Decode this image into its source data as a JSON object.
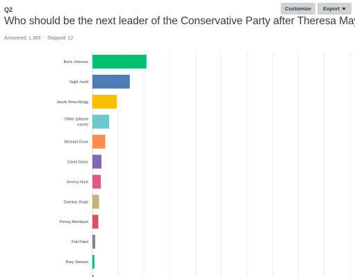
{
  "header": {
    "question_number": "Q2",
    "title": "Who should be the next leader of the Conservative Party after Theresa May?",
    "answered": "Answered: 1,363",
    "skipped": "Skipped: 12"
  },
  "toolbar": {
    "customize_label": "Customize",
    "export_label": "Export"
  },
  "colors": {
    "grid": "#e3e6e8",
    "axis": "#d0d2d3"
  },
  "chart_data": {
    "type": "bar",
    "orientation": "horizontal",
    "xlim": [
      0,
      100
    ],
    "grid": true,
    "categories": [
      "Boris Johnson",
      "Sajid Javid",
      "Jacob Rees-Mogg",
      "Other (please name)",
      "Michael Gove",
      "David Davis",
      "Jeremy Hunt",
      "Dominic Raab",
      "Penny Mordaunt",
      "Priti Patel",
      "Rory Stewart"
    ],
    "category_lines": [
      [
        "Boris Johnson"
      ],
      [
        "Sajid Javid"
      ],
      [
        "Jacob Rees-Mogg"
      ],
      [
        "Other (please",
        "name)"
      ],
      [
        "Michael Gove"
      ],
      [
        "David Davis"
      ],
      [
        "Jeremy Hunt"
      ],
      [
        "Dominic Raab"
      ],
      [
        "Penny Mordaunt"
      ],
      [
        "Priti Patel"
      ],
      [
        "Rory Stewart"
      ]
    ],
    "values": [
      21,
      14.5,
      9.5,
      6.5,
      5,
      3.5,
      3.3,
      2.6,
      2.3,
      1.1,
      0.8
    ],
    "colors": [
      "#00bf6f",
      "#507cb6",
      "#f9be00",
      "#6bc8cd",
      "#ff8b4f",
      "#7f6aad",
      "#e05886",
      "#c5b17b",
      "#e04d5c",
      "#7d868c",
      "#00bf6f"
    ]
  }
}
